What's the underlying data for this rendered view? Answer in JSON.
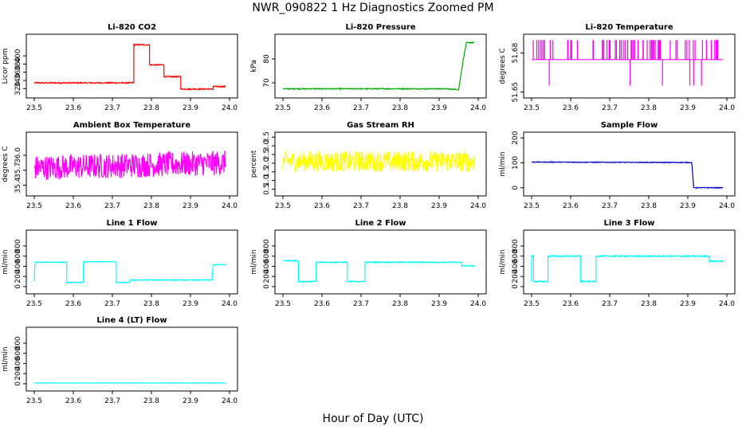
{
  "figure": {
    "title": "NWR_090822  1 Hz Diagnostics Zoomed PM",
    "xlabel": "Hour of Day (UTC)"
  },
  "chart_data": [
    {
      "type": "line",
      "title": "Li-820 CO2",
      "ylabel": "Licor ppm",
      "color": "#ff0000",
      "xlim": [
        23.5,
        24.0
      ],
      "ylim": [
        305,
        445
      ],
      "xticks": [
        "23.5",
        "23.6",
        "23.7",
        "23.8",
        "23.9",
        "24.0"
      ],
      "yticks": [
        {
          "v": 320,
          "t": "320"
        },
        {
          "v": 340,
          "t": "340"
        },
        {
          "v": 360,
          "t": "360"
        },
        {
          "v": 380,
          "t": "380"
        },
        {
          "v": 400,
          "t": "400"
        }
      ],
      "series": [
        {
          "x": [
            23.5,
            23.755,
            23.755,
            23.795,
            23.795,
            23.832,
            23.832,
            23.875,
            23.875,
            23.958,
            23.958,
            23.99
          ],
          "y": [
            334,
            334,
            427,
            427,
            378,
            378,
            349,
            349,
            319,
            319,
            325,
            325
          ],
          "noise": 1.5
        }
      ]
    },
    {
      "type": "line",
      "title": "Li-820 Pressure",
      "ylabel": "kPa",
      "color": "#00aa00",
      "xlim": [
        23.5,
        24.0
      ],
      "ylim": [
        65,
        89
      ],
      "xticks": [
        "23.5",
        "23.6",
        "23.7",
        "23.8",
        "23.9",
        "24.0"
      ],
      "yticks": [
        {
          "v": 70,
          "t": "70"
        },
        {
          "v": 80,
          "t": "80"
        }
      ],
      "series": [
        {
          "x": [
            23.5,
            23.91,
            23.95,
            23.962,
            23.97,
            23.99
          ],
          "y": [
            67.5,
            67.5,
            67.2,
            80,
            86.8,
            86.8
          ],
          "noise": 0.2
        }
      ]
    },
    {
      "type": "line",
      "title": "Li-820 Temperature",
      "ylabel": "degrees C",
      "color": "#ff00ff",
      "xlim": [
        23.5,
        24.0
      ],
      "ylim": [
        51.648,
        51.692
      ],
      "xticks": [
        "23.5",
        "23.6",
        "23.7",
        "23.8",
        "23.9",
        "24.0"
      ],
      "yticks": [
        {
          "v": 51.65,
          "t": "51.65"
        },
        {
          "v": 51.68,
          "t": "51.68"
        }
      ],
      "series": [
        {
          "x": [
            23.5,
            23.99
          ],
          "y": [
            51.675,
            51.675
          ],
          "spikes_up": 51.69,
          "spikes_down": 51.655,
          "noise": 0
        }
      ]
    },
    {
      "type": "line",
      "title": "Ambient Box Temperature",
      "ylabel": "degrees C",
      "color": "#ff00ff",
      "xlim": [
        23.5,
        24.0
      ],
      "ylim": [
        35.25,
        36.4
      ],
      "xticks": [
        "23.5",
        "23.6",
        "23.7",
        "23.8",
        "23.9",
        "24.0"
      ],
      "yticks": [
        {
          "v": 35.4,
          "t": "35.4"
        },
        {
          "v": 35.7,
          "t": "35.7"
        },
        {
          "v": 36.0,
          "t": "36.0"
        }
      ],
      "series": [
        {
          "x": [
            23.5,
            23.99
          ],
          "y": [
            35.75,
            35.85
          ],
          "noise": 0.25
        }
      ]
    },
    {
      "type": "line",
      "title": "Gas Stream RH",
      "ylabel": "percent",
      "color": "#ffff00",
      "xlim": [
        23.5,
        24.0
      ],
      "ylim": [
        0.3,
        3.6
      ],
      "xticks": [
        "23.5",
        "23.6",
        "23.7",
        "23.8",
        "23.9",
        "24.0"
      ],
      "yticks": [
        {
          "v": 0.5,
          "t": "0.5"
        },
        {
          "v": 1.0,
          "t": "1.0"
        },
        {
          "v": 1.5,
          "t": "1.5"
        },
        {
          "v": 2.0,
          "t": "2.0"
        },
        {
          "v": 2.5,
          "t": "2.5"
        },
        {
          "v": 3.0,
          "t": "3.0"
        },
        {
          "v": 3.5,
          "t": "3.5"
        }
      ],
      "series": [
        {
          "x": [
            23.5,
            23.99
          ],
          "y": [
            2.1,
            2.1
          ],
          "noise": 0.6
        }
      ]
    },
    {
      "type": "line",
      "title": "Sample Flow",
      "ylabel": "ml/min",
      "color": "#0000cc",
      "xlim": [
        23.5,
        24.0
      ],
      "ylim": [
        -20,
        210
      ],
      "xticks": [
        "23.5",
        "23.6",
        "23.7",
        "23.8",
        "23.9",
        "24.0"
      ],
      "yticks": [
        {
          "v": 0,
          "t": "0"
        },
        {
          "v": 100,
          "t": "100"
        },
        {
          "v": 200,
          "t": "200"
        }
      ],
      "series": [
        {
          "x": [
            23.5,
            23.91,
            23.915,
            23.99
          ],
          "y": [
            103,
            101,
            0,
            0
          ],
          "noise": 1.5
        }
      ]
    },
    {
      "type": "line",
      "title": "Line 1 Flow",
      "ylabel": "ml/min",
      "color": "#00ffff",
      "xlim": [
        23.5,
        24.0
      ],
      "ylim": [
        -80,
        1050
      ],
      "xticks": [
        "23.5",
        "23.6",
        "23.7",
        "23.8",
        "23.9",
        "24.0"
      ],
      "yticks": [
        {
          "v": 0,
          "t": "0"
        },
        {
          "v": 200,
          "t": "200"
        },
        {
          "v": 400,
          "t": "400"
        },
        {
          "v": 600,
          "t": "600"
        },
        {
          "v": 800,
          "t": "800"
        }
      ],
      "series": [
        {
          "x": [
            23.5,
            23.502,
            23.583,
            23.583,
            23.626,
            23.626,
            23.71,
            23.71,
            23.745,
            23.745,
            23.955,
            23.958,
            23.99
          ],
          "y": [
            100,
            480,
            480,
            80,
            80,
            490,
            490,
            80,
            80,
            130,
            130,
            430,
            430
          ],
          "noise": 8
        }
      ]
    },
    {
      "type": "line",
      "title": "Line 2 Flow",
      "ylabel": "ml/min",
      "color": "#00ffff",
      "xlim": [
        23.5,
        24.0
      ],
      "ylim": [
        -80,
        1050
      ],
      "xticks": [
        "23.5",
        "23.6",
        "23.7",
        "23.8",
        "23.9",
        "24.0"
      ],
      "yticks": [
        {
          "v": 0,
          "t": "0"
        },
        {
          "v": 200,
          "t": "200"
        },
        {
          "v": 400,
          "t": "400"
        },
        {
          "v": 600,
          "t": "600"
        },
        {
          "v": 800,
          "t": "800"
        }
      ],
      "series": [
        {
          "x": [
            23.5,
            23.54,
            23.54,
            23.585,
            23.585,
            23.665,
            23.665,
            23.71,
            23.71,
            23.958,
            23.958,
            23.99
          ],
          "y": [
            510,
            510,
            100,
            100,
            480,
            480,
            100,
            100,
            480,
            480,
            410,
            410
          ],
          "noise": 10
        }
      ]
    },
    {
      "type": "line",
      "title": "Line 3 Flow",
      "ylabel": "ml/min",
      "color": "#00ffff",
      "xlim": [
        23.5,
        24.0
      ],
      "ylim": [
        -80,
        1050
      ],
      "xticks": [
        "23.5",
        "23.6",
        "23.7",
        "23.8",
        "23.9",
        "24.0"
      ],
      "yticks": [
        {
          "v": 0,
          "t": "0"
        },
        {
          "v": 200,
          "t": "200"
        },
        {
          "v": 400,
          "t": "400"
        },
        {
          "v": 600,
          "t": "600"
        },
        {
          "v": 800,
          "t": "800"
        }
      ],
      "series": [
        {
          "x": [
            23.5,
            23.5,
            23.505,
            23.505,
            23.542,
            23.542,
            23.625,
            23.625,
            23.665,
            23.665,
            23.955,
            23.955,
            23.99
          ],
          "y": [
            100,
            600,
            600,
            100,
            100,
            600,
            600,
            100,
            100,
            600,
            600,
            500,
            500
          ],
          "noise": 12
        }
      ]
    },
    {
      "type": "line",
      "title": "Line 4 (LT) Flow",
      "ylabel": "ml/min",
      "color": "#00ffff",
      "xlim": [
        23.5,
        24.0
      ],
      "ylim": [
        -80,
        1050
      ],
      "xticks": [
        "23.5",
        "23.6",
        "23.7",
        "23.8",
        "23.9",
        "24.0"
      ],
      "yticks": [
        {
          "v": 0,
          "t": "0"
        },
        {
          "v": 200,
          "t": "200"
        },
        {
          "v": 400,
          "t": "400"
        },
        {
          "v": 600,
          "t": "600"
        },
        {
          "v": 800,
          "t": "800"
        }
      ],
      "series": [
        {
          "x": [
            23.5,
            23.99
          ],
          "y": [
            15,
            15
          ],
          "noise": 2
        }
      ]
    }
  ]
}
